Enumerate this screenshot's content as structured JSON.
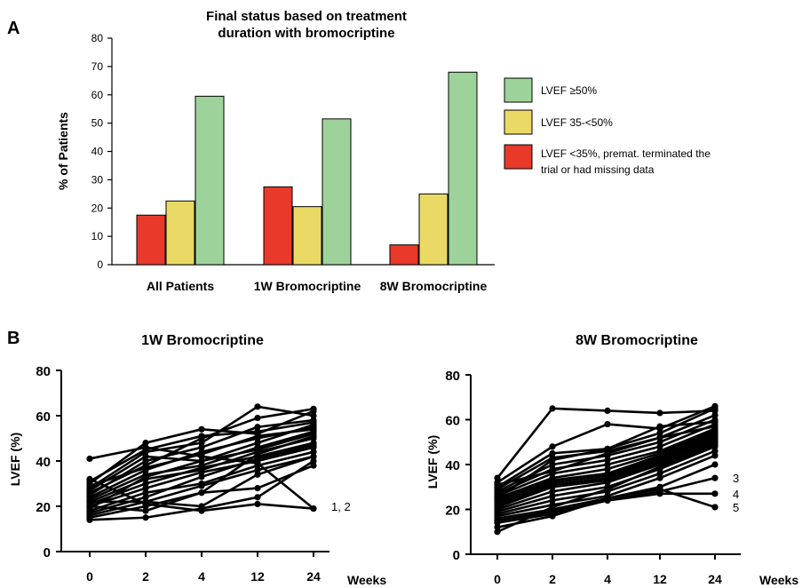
{
  "panel_a": {
    "label": "A",
    "title_line1": "Final status based on treatment",
    "title_line2": "duration with bromocriptine"
  },
  "panel_b": {
    "label": "B"
  },
  "chart_data": [
    {
      "type": "bar",
      "title": "Final status based on treatment duration with bromocriptine",
      "ylabel": "% of Patients",
      "xlabel": "",
      "ylim": [
        0,
        80
      ],
      "yticks": [
        0,
        10,
        20,
        30,
        40,
        50,
        60,
        70,
        80
      ],
      "categories": [
        "All Patients",
        "1W Bromocriptine",
        "8W Bromocriptine"
      ],
      "legend_position": "right",
      "grid": false,
      "series": [
        {
          "name": "LVEF  <35%, premat. terminated the trial or had missing data",
          "legend_lines": [
            "LVEF  <35%, premat. terminated the",
            "trial or had missing data"
          ],
          "color": "#e8392a",
          "values": [
            17.5,
            27.5,
            7
          ]
        },
        {
          "name": "LVEF 35-<50%",
          "legend_lines": [
            "LVEF 35-<50%"
          ],
          "color": "#ebd966",
          "values": [
            22.5,
            20.5,
            25
          ]
        },
        {
          "name": "LVEF  ≥50%",
          "legend_lines": [
            "LVEF  ≥50%"
          ],
          "color": "#9dd39b",
          "values": [
            59.5,
            51.5,
            68
          ]
        }
      ],
      "legend_order": [
        2,
        1,
        0
      ]
    },
    {
      "type": "line",
      "title": "1W Bromocriptine",
      "ylabel": "LVEF (%)",
      "xlabel": "Weeks",
      "x": [
        0,
        2,
        4,
        12,
        24
      ],
      "ylim": [
        0,
        80
      ],
      "yticks": [
        0,
        20,
        40,
        60,
        80
      ],
      "color": "#000000",
      "annotations": [
        {
          "text": "1, 2",
          "x": 24,
          "y": 20
        }
      ],
      "series": [
        {
          "values": [
            41,
            46,
            42,
            39,
            19
          ]
        },
        {
          "values": [
            32,
            21,
            18,
            21,
            19
          ]
        },
        {
          "values": [
            30,
            48,
            54,
            52,
            62
          ]
        },
        {
          "values": [
            28,
            44,
            48,
            64,
            60
          ]
        },
        {
          "values": [
            26,
            38,
            50,
            59,
            63
          ]
        },
        {
          "values": [
            25,
            40,
            46,
            55,
            58
          ]
        },
        {
          "values": [
            24,
            36,
            44,
            50,
            55
          ]
        },
        {
          "values": [
            23,
            34,
            38,
            46,
            53
          ]
        },
        {
          "values": [
            22,
            32,
            36,
            44,
            50
          ]
        },
        {
          "values": [
            21,
            30,
            37,
            42,
            48
          ]
        },
        {
          "values": [
            20,
            28,
            35,
            40,
            46
          ]
        },
        {
          "values": [
            19,
            33,
            40,
            45,
            52
          ]
        },
        {
          "values": [
            18,
            26,
            30,
            38,
            44
          ]
        },
        {
          "values": [
            17,
            24,
            33,
            41,
            47
          ]
        },
        {
          "values": [
            16,
            22,
            29,
            36,
            42
          ]
        },
        {
          "values": [
            15,
            20,
            26,
            28,
            38
          ]
        },
        {
          "values": [
            14,
            15,
            19,
            24,
            40
          ]
        },
        {
          "values": [
            27,
            42,
            40,
            48,
            56
          ]
        },
        {
          "values": [
            29,
            37,
            43,
            51,
            54
          ]
        },
        {
          "values": [
            31,
            45,
            51,
            53,
            57
          ]
        },
        {
          "values": [
            22,
            22,
            20,
            34,
            42
          ]
        },
        {
          "values": [
            20,
            18,
            26,
            43,
            51
          ]
        }
      ]
    },
    {
      "type": "line",
      "title": "8W Bromocriptine",
      "ylabel": "LVEF (%)",
      "xlabel": "Weeks",
      "x": [
        0,
        2,
        4,
        12,
        24
      ],
      "ylim": [
        0,
        80
      ],
      "yticks": [
        0,
        20,
        40,
        60,
        80
      ],
      "color": "#000000",
      "annotations": [
        {
          "text": "3",
          "x": 24,
          "y": 34
        },
        {
          "text": "4",
          "x": 24,
          "y": 27
        },
        {
          "text": "5",
          "x": 24,
          "y": 21
        }
      ],
      "series": [
        {
          "values": [
            34,
            65,
            64,
            63,
            64
          ]
        },
        {
          "values": [
            32,
            48,
            58,
            56,
            66
          ]
        },
        {
          "values": [
            30,
            45,
            47,
            54,
            65
          ]
        },
        {
          "values": [
            29,
            43,
            46,
            52,
            62
          ]
        },
        {
          "values": [
            28,
            40,
            44,
            50,
            60
          ]
        },
        {
          "values": [
            27,
            38,
            42,
            48,
            58
          ]
        },
        {
          "values": [
            26,
            36,
            40,
            46,
            56
          ]
        },
        {
          "values": [
            25,
            34,
            38,
            45,
            55
          ]
        },
        {
          "values": [
            24,
            33,
            36,
            44,
            54
          ]
        },
        {
          "values": [
            23,
            32,
            35,
            43,
            53
          ]
        },
        {
          "values": [
            22,
            31,
            34,
            42,
            52
          ]
        },
        {
          "values": [
            21,
            30,
            33,
            41,
            51
          ]
        },
        {
          "values": [
            20,
            28,
            32,
            40,
            50
          ]
        },
        {
          "values": [
            19,
            26,
            30,
            38,
            48
          ]
        },
        {
          "values": [
            18,
            24,
            28,
            36,
            46
          ]
        },
        {
          "values": [
            17,
            22,
            26,
            34,
            44
          ]
        },
        {
          "values": [
            16,
            20,
            25,
            30,
            40
          ]
        },
        {
          "values": [
            15,
            19,
            24,
            28,
            34
          ]
        },
        {
          "values": [
            14,
            18,
            24,
            27,
            27
          ]
        },
        {
          "values": [
            12,
            17,
            25,
            29,
            21
          ]
        },
        {
          "values": [
            10,
            21,
            29,
            39,
            49
          ]
        },
        {
          "values": [
            25,
            42,
            47,
            57,
            59
          ]
        },
        {
          "values": [
            31,
            37,
            45,
            52,
            57
          ]
        }
      ]
    }
  ]
}
